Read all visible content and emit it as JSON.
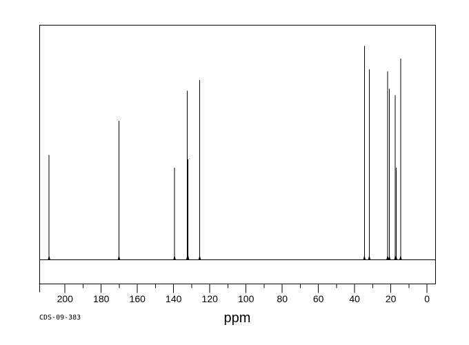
{
  "colors": {
    "background": "#ffffff",
    "line": "#000000",
    "text": "#000000"
  },
  "footer": {
    "sample_id": "CDS-09-383"
  },
  "chart_data": {
    "type": "line",
    "subtype": "13C-NMR-spectrum",
    "title": "",
    "xlabel": "ppm",
    "ylabel": "",
    "grid": false,
    "legend": false,
    "x_axis": {
      "reversed": true,
      "display_min": -4.7,
      "display_max": 214.0,
      "major_ticks": [
        200,
        180,
        160,
        140,
        120,
        100,
        80,
        60,
        40,
        20,
        0
      ],
      "major_tick_labels": [
        "200",
        "180",
        "160",
        "140",
        "120",
        "100",
        "80",
        "60",
        "40",
        "20",
        "0"
      ],
      "minor_ticks": [
        190,
        170,
        150,
        130,
        110,
        90,
        70,
        50,
        30,
        10
      ]
    },
    "y_axis": {
      "visible": false,
      "intensity_scale": "relative, 1.0 = tallest peak"
    },
    "peaks": [
      {
        "ppm": 208.8,
        "intensity": 0.49
      },
      {
        "ppm": 170.2,
        "intensity": 0.65
      },
      {
        "ppm": 139.5,
        "intensity": 0.43
      },
      {
        "ppm": 132.4,
        "intensity": 0.79
      },
      {
        "ppm": 132.0,
        "intensity": 0.47
      },
      {
        "ppm": 125.6,
        "intensity": 0.84
      },
      {
        "ppm": 34.6,
        "intensity": 1.0
      },
      {
        "ppm": 31.9,
        "intensity": 0.89
      },
      {
        "ppm": 21.8,
        "intensity": 0.88
      },
      {
        "ppm": 20.8,
        "intensity": 0.8
      },
      {
        "ppm": 17.5,
        "intensity": 0.77
      },
      {
        "ppm": 17.1,
        "intensity": 0.43
      },
      {
        "ppm": 14.6,
        "intensity": 0.94
      }
    ]
  }
}
